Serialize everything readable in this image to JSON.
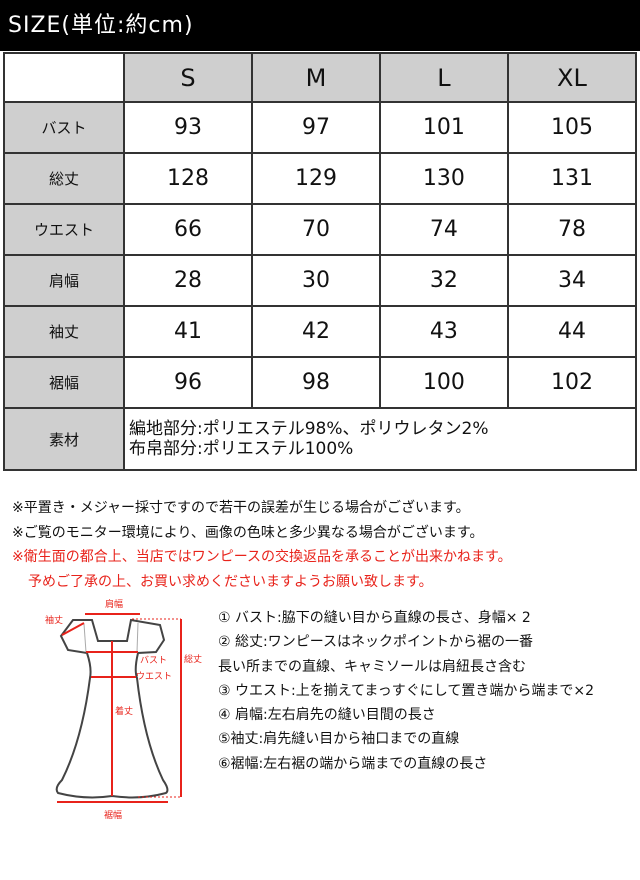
{
  "title": "SIZE(単位:約cm)",
  "table": {
    "columns": [
      "S",
      "M",
      "L",
      "XL"
    ],
    "rows": [
      {
        "label": "バスト",
        "values": [
          "93",
          "97",
          "101",
          "105"
        ]
      },
      {
        "label": "総丈",
        "values": [
          "128",
          "129",
          "130",
          "131"
        ]
      },
      {
        "label": "ウエスト",
        "values": [
          "66",
          "70",
          "74",
          "78"
        ]
      },
      {
        "label": "肩幅",
        "values": [
          "28",
          "30",
          "32",
          "34"
        ]
      },
      {
        "label": "袖丈",
        "values": [
          "41",
          "42",
          "43",
          "44"
        ]
      },
      {
        "label": "裾幅",
        "values": [
          "96",
          "98",
          "100",
          "102"
        ]
      }
    ],
    "material": {
      "label": "素材",
      "lines": [
        "編地部分:ポリエステル98%、ポリウレタン2%",
        "布帛部分:ポリエステル100%"
      ]
    }
  },
  "notes": [
    "※平置き・メジャー採寸ですので若干の誤差が生じる場合がございます。",
    "※ご覧のモニター環境により、画像の色味と多少異なる場合がございます。"
  ],
  "red_notes": [
    "※衛生面の都合上、当店ではワンピースの交換返品を承ることが出来かねます。",
    "予めご了承の上、お買い求めくださいますようお願い致します。"
  ],
  "diagram_labels": {
    "shoulder": "肩幅",
    "sleeve": "袖丈",
    "bust": "バスト",
    "waist": "ウエスト",
    "length": "着丈",
    "total": "総丈",
    "hem": "裾幅"
  },
  "legend": [
    "① バスト:脇下の縫い目から直線の長さ、身幅× 2",
    "② 総丈:ワンピースはネックポイントから裾の一番",
    "長い所までの直線、キャミソールは肩紐長さ含む",
    "③ ウエスト:上を揃えてまっすぐにして置き端から端まで×2",
    "④ 肩幅:左右肩先の縫い目間の長さ",
    "⑤袖丈:肩先縫い目から袖口までの直線",
    "⑥裾幅:左右裾の端から端までの直線の長さ"
  ],
  "colors": {
    "header_bg": "#000000",
    "label_bg": "#cfcfcf",
    "accent_red": "#e8231b"
  }
}
